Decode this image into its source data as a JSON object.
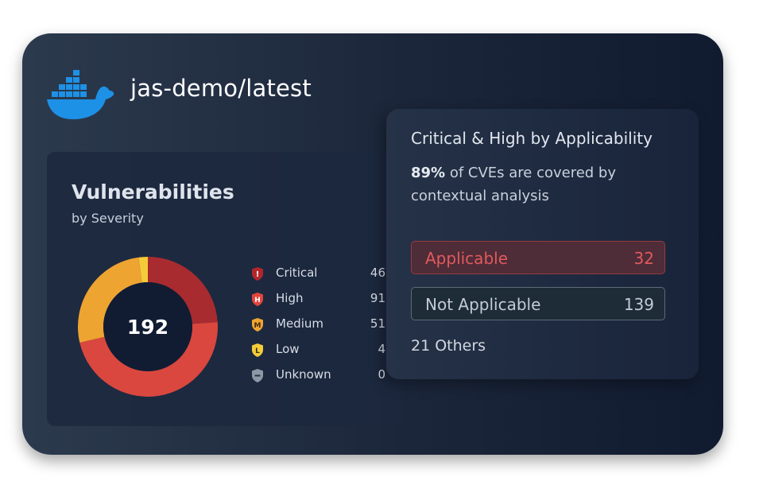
{
  "header": {
    "logo_icon": "docker-whale-icon",
    "repo_name": "jas-demo/latest"
  },
  "vulnerabilities": {
    "title": "Vulnerabilities",
    "subtitle": "by Severity",
    "total": "192",
    "items": [
      {
        "label": "Critical",
        "value": "46",
        "icon": "critical-shield-icon",
        "color": "#a82b30"
      },
      {
        "label": "High",
        "value": "91",
        "icon": "high-shield-icon",
        "color": "#d9473f"
      },
      {
        "label": "Medium",
        "value": "51",
        "icon": "medium-shield-icon",
        "color": "#eea431"
      },
      {
        "label": "Low",
        "value": "4",
        "icon": "low-shield-icon",
        "color": "#f4cc39"
      },
      {
        "label": "Unknown",
        "value": "0",
        "icon": "unknown-shield-icon",
        "color": "#8d98a7"
      }
    ]
  },
  "chart_data": {
    "type": "pie",
    "categories": [
      "Critical",
      "High",
      "Medium",
      "Low",
      "Unknown"
    ],
    "values": [
      46,
      91,
      51,
      4,
      0
    ],
    "colors": [
      "#a82b30",
      "#d9473f",
      "#eea431",
      "#f4cc39",
      "#8d98a7"
    ],
    "title": "Vulnerabilities",
    "subtitle": "by Severity"
  },
  "applicability": {
    "title": "Critical & High by Applicability",
    "percent": "89%",
    "description": " of CVEs are covered by contextual analysis",
    "applicable_label": "Applicable",
    "applicable_value": "32",
    "not_applicable_label": "Not Applicable",
    "not_applicable_value": "139",
    "others": "21 Others"
  },
  "colors": {
    "accent_blue": "#1d91e6",
    "applicable_red": "#e05a5c",
    "card_dark": "#1b263a"
  }
}
